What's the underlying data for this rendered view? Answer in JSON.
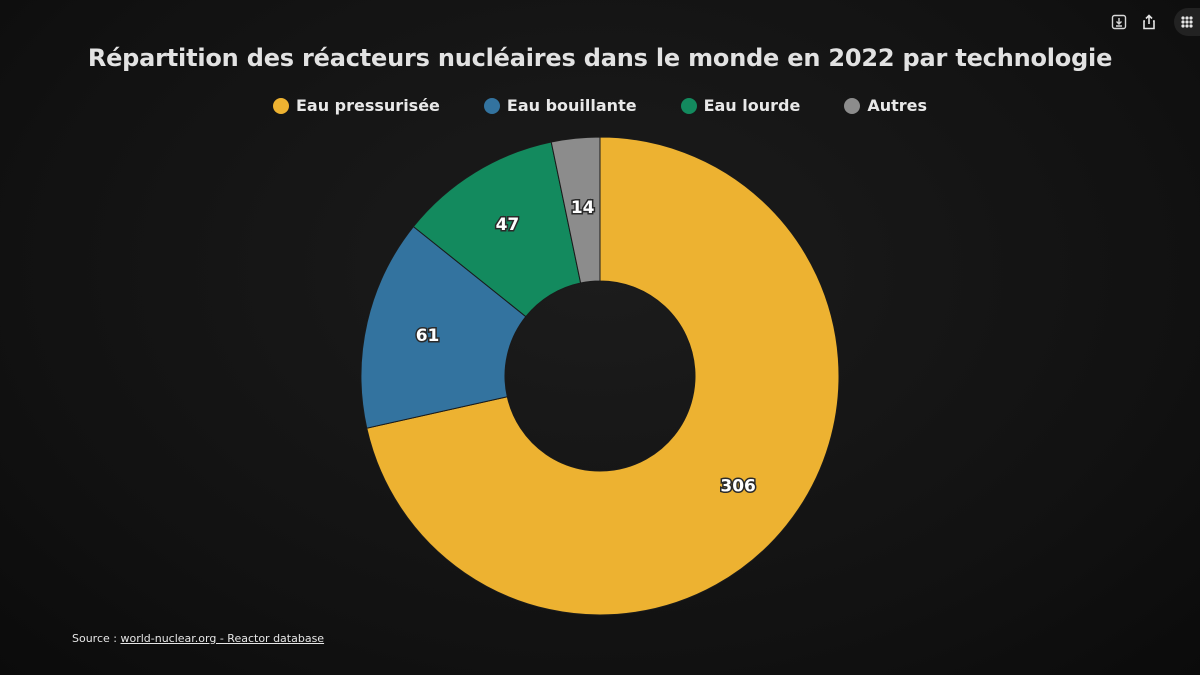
{
  "toolbar": {
    "icons": [
      "download-icon",
      "share-icon",
      "apps-menu-icon"
    ]
  },
  "chart_data": {
    "type": "pie",
    "subtype": "donut",
    "title": "Répartition des réacteurs nucléaires dans le monde en 2022 par technologie",
    "categories": [
      "Eau pressurisée",
      "Eau bouillante",
      "Eau lourde",
      "Autres"
    ],
    "values": [
      306,
      61,
      47,
      14
    ],
    "colors": [
      "#EDB231",
      "#33739F",
      "#138A5E",
      "#8C8C8C"
    ],
    "legend_position": "top",
    "start_angle_deg": 0,
    "direction": "clockwise"
  },
  "source": {
    "prefix": "Source : ",
    "link_text": "world-nuclear.org - Reactor database"
  }
}
